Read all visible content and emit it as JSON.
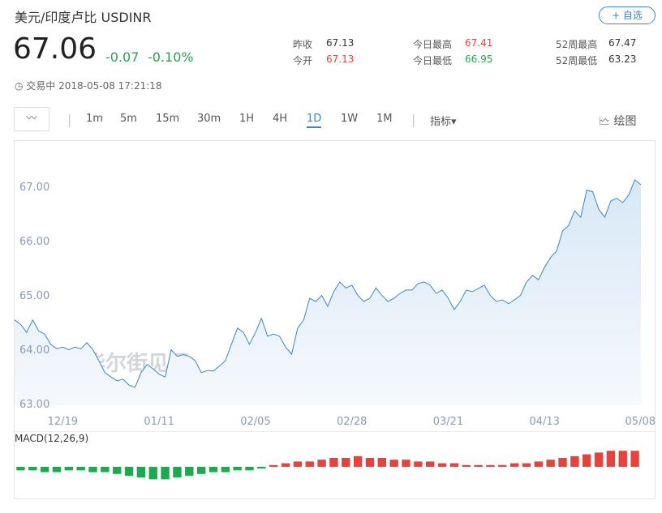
{
  "header": {
    "name": "美元/印度卢比",
    "symbol": "USDINR",
    "watch_button": "+ 自选",
    "price": 67.06,
    "change": -0.07,
    "change_pct": "-0.10%",
    "status": "交易中 2018-05-08 17:21:18",
    "stats": [
      {
        "label": "昨收",
        "value": 67.13
      },
      {
        "label": "今日最高",
        "value": 67.41
      },
      {
        "label": "52周最高",
        "value": 67.47
      },
      {
        "label": "今开",
        "value": 67.13
      },
      {
        "label": "今日最低",
        "value": 66.95
      },
      {
        "label": "52周最低",
        "value": 63.23
      }
    ]
  },
  "toolbar": {
    "periods": [
      "1m",
      "5m",
      "15m",
      "30m",
      "1H",
      "4H",
      "1D",
      "1W",
      "1M"
    ],
    "active": "1D",
    "indicator": "指标",
    "draw": "绘图"
  },
  "watermark": "华尔街见闻",
  "chart_data": [
    {
      "type": "area",
      "color": "#3a86c8",
      "categories": [
        null,
        null,
        null,
        null,
        null,
        null,
        null,
        null,
        "12/19",
        null,
        null,
        null,
        null,
        null,
        null,
        null,
        null,
        null,
        null,
        null,
        null,
        null,
        null,
        null,
        "01/11",
        null,
        null,
        null,
        null,
        null,
        null,
        null,
        null,
        null,
        null,
        null,
        null,
        null,
        null,
        null,
        "02/05",
        null,
        null,
        null,
        null,
        null,
        null,
        null,
        null,
        null,
        null,
        null,
        null,
        null,
        null,
        null,
        "02/28",
        null,
        null,
        null,
        null,
        null,
        null,
        null,
        null,
        null,
        null,
        null,
        null,
        null,
        null,
        null,
        "03/21",
        null,
        null,
        null,
        null,
        null,
        null,
        null,
        null,
        null,
        null,
        null,
        null,
        null,
        null,
        null,
        "04/13",
        null,
        null,
        null,
        null,
        null,
        null,
        null,
        null,
        null,
        null,
        null,
        null,
        null,
        null,
        null,
        "05/08"
      ],
      "values": [
        64.54,
        64.46,
        64.31,
        64.54,
        64.34,
        64.28,
        64.09,
        64.01,
        64.04,
        63.99,
        64.04,
        64.01,
        64.12,
        63.99,
        63.79,
        63.57,
        63.49,
        63.42,
        63.45,
        63.34,
        63.3,
        63.57,
        63.72,
        63.64,
        63.54,
        63.49,
        63.99,
        63.87,
        63.9,
        63.87,
        63.79,
        63.57,
        63.61,
        63.6,
        63.69,
        63.79,
        64.09,
        64.39,
        64.31,
        64.09,
        64.31,
        64.57,
        64.24,
        64.28,
        64.24,
        64.04,
        63.91,
        64.39,
        64.54,
        64.94,
        64.88,
        64.99,
        64.79,
        65.06,
        65.24,
        65.13,
        65.18,
        64.99,
        64.88,
        64.94,
        65.13,
        64.99,
        64.88,
        64.94,
        65.03,
        65.09,
        65.09,
        65.21,
        65.24,
        65.18,
        65.03,
        65.09,
        64.94,
        64.73,
        64.88,
        65.09,
        65.06,
        65.12,
        65.18,
        64.99,
        64.88,
        64.91,
        64.84,
        64.91,
        64.99,
        65.24,
        65.36,
        65.28,
        65.51,
        65.69,
        65.81,
        66.18,
        66.28,
        66.55,
        66.43,
        66.93,
        66.9,
        66.58,
        66.43,
        66.73,
        66.78,
        66.7,
        66.85,
        67.12,
        67.03
      ],
      "ylim": [
        62.97,
        67.82
      ],
      "yticks": [
        {
          "value": 63,
          "label": "63.00"
        },
        {
          "value": 64,
          "label": "64.00"
        },
        {
          "value": 65,
          "label": "65.00"
        },
        {
          "value": 66,
          "label": "66.00"
        },
        {
          "value": 67,
          "label": "67.00"
        }
      ]
    },
    {
      "type": "bar",
      "title": "MACD(12,26,9)",
      "up_color": "#e8423f",
      "down_color": "#1fa84f",
      "ylim": [
        -0.1,
        0.1
      ],
      "values": [
        -0.02,
        -0.02,
        -0.03,
        -0.03,
        -0.02,
        -0.02,
        -0.03,
        -0.03,
        -0.04,
        -0.05,
        -0.06,
        -0.07,
        -0.07,
        -0.06,
        -0.05,
        -0.04,
        -0.03,
        -0.03,
        -0.02,
        -0.02,
        -0.01,
        0.01,
        0.02,
        0.03,
        0.03,
        0.04,
        0.05,
        0.05,
        0.06,
        0.05,
        0.05,
        0.04,
        0.04,
        0.03,
        0.03,
        0.02,
        0.02,
        0.01,
        0.01,
        0.01,
        0.01,
        0.02,
        0.02,
        0.03,
        0.04,
        0.05,
        0.06,
        0.07,
        0.08,
        0.09,
        0.09,
        0.09
      ]
    }
  ]
}
